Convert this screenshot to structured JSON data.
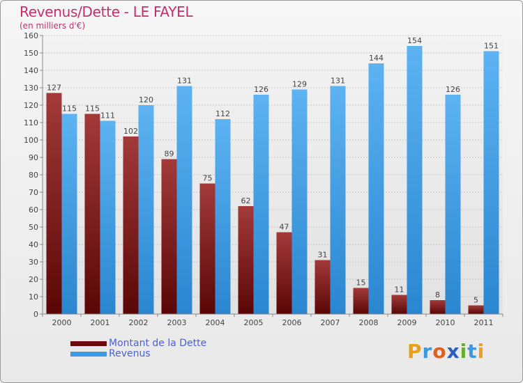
{
  "header": {
    "title": "Revenus/Dette - LE FAYEL",
    "subtitle": "(en milliers d'€)"
  },
  "legend": {
    "items": [
      {
        "label": "Montant de la Dette",
        "color": "#6b0a0a"
      },
      {
        "label": "Revenus",
        "color": "#3d9ae0"
      }
    ]
  },
  "brand": {
    "letters": [
      "P",
      "r",
      "o",
      "x",
      "i",
      "t",
      "i"
    ],
    "colors": [
      "#e8a020",
      "#3d9ae0",
      "#e06020",
      "#2a5fc0",
      "#60b030",
      "#3d9ae0",
      "#e8a020"
    ]
  },
  "chart_data": {
    "type": "bar",
    "title": "Revenus/Dette - LE FAYEL",
    "ylabel": "(en milliers d'€)",
    "categories": [
      "2000",
      "2001",
      "2002",
      "2003",
      "2004",
      "2005",
      "2006",
      "2007",
      "2008",
      "2009",
      "2010",
      "2011"
    ],
    "series": [
      {
        "name": "Montant de la Dette",
        "values": [
          127,
          115,
          102,
          89,
          75,
          62,
          47,
          31,
          15,
          11,
          8,
          5
        ],
        "color": "#7a1414"
      },
      {
        "name": "Revenus",
        "values": [
          115,
          111,
          120,
          131,
          112,
          126,
          129,
          131,
          144,
          154,
          126,
          151
        ],
        "color": "#4aa3e6"
      }
    ],
    "ylim": [
      0,
      160
    ],
    "yticks": [
      0,
      10,
      20,
      30,
      40,
      50,
      60,
      70,
      80,
      90,
      100,
      110,
      120,
      130,
      140,
      150,
      160
    ],
    "grid": true,
    "legend_position": "bottom-left"
  }
}
